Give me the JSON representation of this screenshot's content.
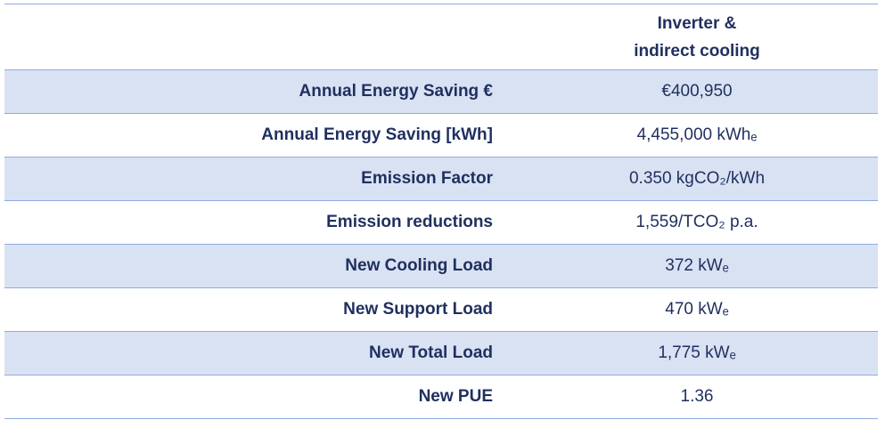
{
  "table": {
    "column_header": [
      "Inverter &",
      "indirect cooling"
    ],
    "rows": [
      {
        "label": "Annual Energy Saving €",
        "value": "€400,950"
      },
      {
        "label": "Annual Energy Saving [kWh]",
        "value": "4,455,000 kWhₑ"
      },
      {
        "label": "Emission Factor",
        "value": "0.350 kgCO₂/kWh"
      },
      {
        "label": "Emission reductions",
        "value": "1,559/TCO₂ p.a."
      },
      {
        "label": "New Cooling Load",
        "value": "372 kWₑ"
      },
      {
        "label": "New Support Load",
        "value": "470 kWₑ"
      },
      {
        "label": "New Total Load",
        "value": "1,775 kWₑ"
      },
      {
        "label": "New PUE",
        "value": "1.36"
      }
    ]
  },
  "colors": {
    "text": "#1f2f5f",
    "row_shade": "#d9e2f3",
    "rule": "#8faadc"
  }
}
